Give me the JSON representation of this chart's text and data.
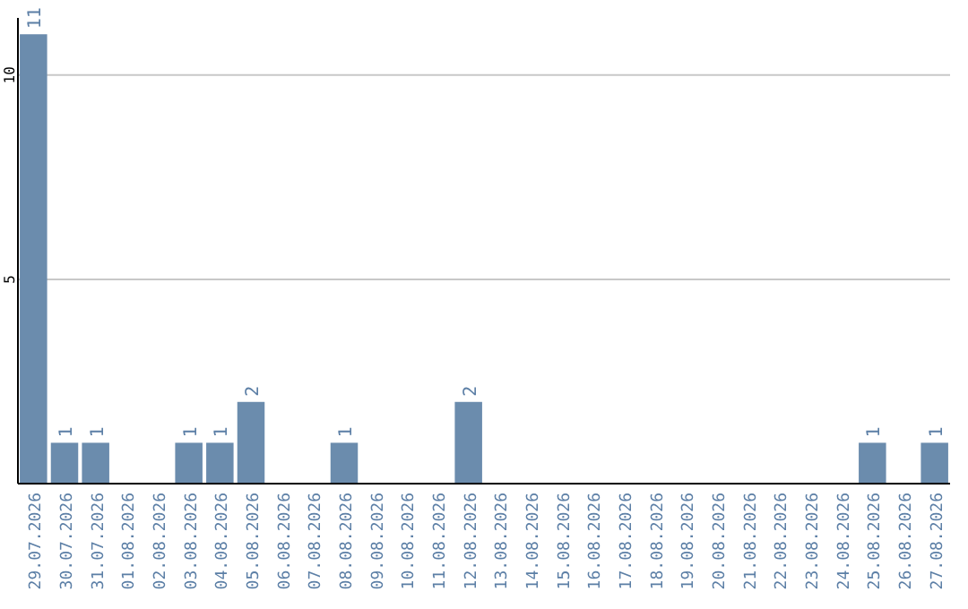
{
  "chart_data": {
    "type": "bar",
    "categories": [
      "29.07.2026",
      "30.07.2026",
      "31.07.2026",
      "01.08.2026",
      "02.08.2026",
      "03.08.2026",
      "04.08.2026",
      "05.08.2026",
      "06.08.2026",
      "07.08.2026",
      "08.08.2026",
      "09.08.2026",
      "10.08.2026",
      "11.08.2026",
      "12.08.2026",
      "13.08.2026",
      "14.08.2026",
      "15.08.2026",
      "16.08.2026",
      "17.08.2026",
      "18.08.2026",
      "19.08.2026",
      "20.08.2026",
      "21.08.2026",
      "22.08.2026",
      "23.08.2026",
      "24.08.2026",
      "25.08.2026",
      "26.08.2026",
      "27.08.2026"
    ],
    "values": [
      11,
      1,
      1,
      0,
      0,
      1,
      1,
      2,
      0,
      0,
      1,
      0,
      0,
      0,
      2,
      0,
      0,
      0,
      0,
      0,
      0,
      0,
      0,
      0,
      0,
      0,
      0,
      1,
      0,
      1
    ],
    "value_labels": [
      "11",
      "1",
      "1",
      null,
      null,
      "1",
      "1",
      "2",
      null,
      null,
      "1",
      null,
      null,
      null,
      "2",
      null,
      null,
      null,
      null,
      null,
      null,
      null,
      null,
      null,
      null,
      null,
      null,
      "1",
      null,
      "1"
    ],
    "color": "#6b8cad",
    "ylim": [
      0,
      11.4
    ],
    "yticks": [
      5,
      10
    ],
    "grid": "y"
  }
}
